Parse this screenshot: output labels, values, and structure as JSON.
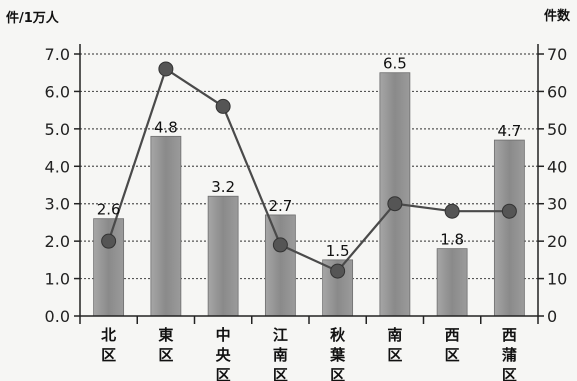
{
  "chart_data": {
    "type": "bar+line",
    "ylabel_left": "件/1万人",
    "ylabel_right": "件数",
    "categories": [
      [
        "北",
        "区"
      ],
      [
        "東",
        "区"
      ],
      [
        "中",
        "央",
        "区"
      ],
      [
        "江",
        "南",
        "区"
      ],
      [
        "秋",
        "葉",
        "区"
      ],
      [
        "南",
        "区"
      ],
      [
        "西",
        "区"
      ],
      [
        "西",
        "蒲",
        "区"
      ]
    ],
    "bar_series": {
      "axis": "left",
      "values": [
        2.6,
        4.8,
        3.2,
        2.7,
        1.5,
        6.5,
        1.8,
        4.7
      ],
      "labels": [
        "2.6",
        "4.8",
        "3.2",
        "2.7",
        "1.5",
        "6.5",
        "1.8",
        "4.7"
      ],
      "color": "#8c8c8c"
    },
    "line_series": {
      "axis": "right",
      "values": [
        20,
        66,
        56,
        19,
        12,
        30,
        28,
        28
      ],
      "color": "#4a4a4a"
    },
    "left_axis": {
      "range": [
        0,
        7
      ],
      "ticks": [
        "0.0",
        "1.0",
        "2.0",
        "3.0",
        "4.0",
        "5.0",
        "6.0",
        "7.0"
      ]
    },
    "right_axis": {
      "range": [
        0,
        70
      ],
      "ticks": [
        "0",
        "10",
        "20",
        "30",
        "40",
        "50",
        "60",
        "70"
      ]
    },
    "grid": true
  }
}
